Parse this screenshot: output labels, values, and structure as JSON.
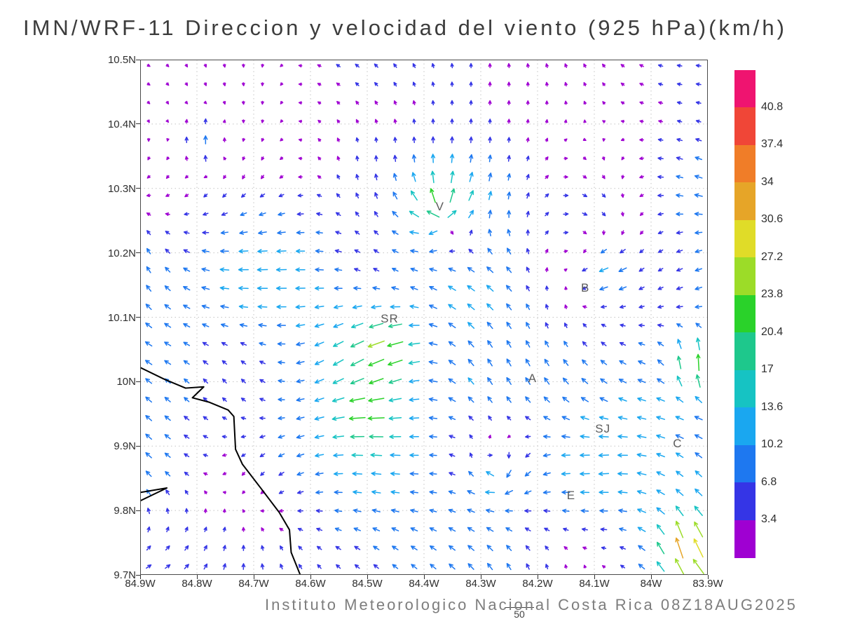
{
  "title": "IMN/WRF-11 Direccion y velocidad del viento (925 hPa)(km/h)",
  "footer": {
    "credit": "Instituto Meteorologico Nacional Costa Rica 08Z18AUG2025"
  },
  "reference_vector": {
    "label": "50"
  },
  "chart_data": {
    "type": "vector_field",
    "title": "IMN/WRF-11 Direccion y velocidad del viento (925 hPa)(km/h)",
    "model": "IMN/WRF-11",
    "level": "925 hPa",
    "units": "km/h",
    "valid_time": "08Z18AUG2025",
    "lon_range": [
      -84.9,
      -83.9
    ],
    "lat_range": [
      9.7,
      10.5
    ],
    "x_axis": {
      "ticks": [
        {
          "label": "84.9W",
          "value": -84.9
        },
        {
          "label": "84.8W",
          "value": -84.8
        },
        {
          "label": "84.7W",
          "value": -84.7
        },
        {
          "label": "84.6W",
          "value": -84.6
        },
        {
          "label": "84.5W",
          "value": -84.5
        },
        {
          "label": "84.4W",
          "value": -84.4
        },
        {
          "label": "84.3W",
          "value": -84.3
        },
        {
          "label": "84.2W",
          "value": -84.2
        },
        {
          "label": "84.1W",
          "value": -84.1
        },
        {
          "label": "84W",
          "value": -84.0
        },
        {
          "label": "83.9W",
          "value": -83.9
        }
      ]
    },
    "y_axis": {
      "ticks": [
        {
          "label": "10.5N",
          "value": 10.5
        },
        {
          "label": "10.4N",
          "value": 10.4
        },
        {
          "label": "10.3N",
          "value": 10.3
        },
        {
          "label": "10.2N",
          "value": 10.2
        },
        {
          "label": "10.1N",
          "value": 10.1
        },
        {
          "label": "10N",
          "value": 10.0
        },
        {
          "label": "9.9N",
          "value": 9.9
        },
        {
          "label": "9.8N",
          "value": 9.8
        },
        {
          "label": "9.7N",
          "value": 9.7
        }
      ]
    },
    "grid": {
      "nx": 30,
      "ny": 28,
      "lon0": -84.885,
      "dlon": 0.0334,
      "lat0": 9.713,
      "dlat": 0.0288
    },
    "colorbar": {
      "unit": "km/h",
      "levels": [
        3.4,
        6.8,
        10.2,
        13.6,
        17,
        20.4,
        23.8,
        27.2,
        30.6,
        34,
        37.4,
        40.8
      ],
      "colors": [
        "#9f00d2",
        "#3535e6",
        "#1e78f0",
        "#1aa7f0",
        "#16c3c3",
        "#1ec88c",
        "#2ad22a",
        "#9cdc28",
        "#e0dc28",
        "#e6a528",
        "#f07d28",
        "#f04637",
        "#ef1470"
      ]
    },
    "reference_vector": {
      "label": "50",
      "speed": 50
    },
    "stations": [
      {
        "label": "V",
        "lon": -84.372,
        "lat": 10.27
      },
      {
        "label": "B",
        "lon": -84.116,
        "lat": 10.144
      },
      {
        "label": "SR",
        "lon": -84.469,
        "lat": 10.096
      },
      {
        "label": "A",
        "lon": -84.209,
        "lat": 10.004
      },
      {
        "label": "SJ",
        "lon": -84.091,
        "lat": 9.925
      },
      {
        "label": "C",
        "lon": -83.954,
        "lat": 9.902
      },
      {
        "label": "E",
        "lon": -84.141,
        "lat": 9.822
      }
    ],
    "coastline": [
      [
        [
          -84.9,
          10.022
        ],
        [
          -84.858,
          10.004
        ],
        [
          -84.82,
          9.99
        ],
        [
          -84.788,
          9.992
        ],
        [
          -84.808,
          9.975
        ],
        [
          -84.778,
          9.968
        ],
        [
          -84.745,
          9.956
        ],
        [
          -84.735,
          9.946
        ],
        [
          -84.732,
          9.895
        ],
        [
          -84.72,
          9.872
        ],
        [
          -84.686,
          9.833
        ],
        [
          -84.655,
          9.797
        ],
        [
          -84.637,
          9.77
        ],
        [
          -84.634,
          9.735
        ],
        [
          -84.618,
          9.7
        ]
      ],
      [
        [
          -84.9,
          9.828
        ],
        [
          -84.853,
          9.835
        ],
        [
          -84.9,
          9.815
        ]
      ]
    ],
    "field_model": {
      "base": {
        "u": -7.5,
        "v": 1.0
      },
      "tx_span": [
        -84.9,
        -83.9
      ],
      "ty_span": [
        9.7,
        10.5
      ],
      "waves": [
        {
          "comp": "u",
          "amp": 4.5,
          "fx": 0.35,
          "fy": 1.1,
          "phase": 1.3
        },
        {
          "comp": "u",
          "amp": 3.5,
          "fx": 1.5,
          "fy": 0.25,
          "phase": 0.7
        },
        {
          "comp": "v",
          "amp": 4.0,
          "fx": 1.2,
          "fy": 0.3,
          "phase": 2.0
        },
        {
          "comp": "v",
          "amp": 3.0,
          "fx": 0.25,
          "fy": 0.9,
          "phase": 0.4
        }
      ],
      "noise": {
        "scale": 5.0,
        "amp_u": 8.0,
        "amp_v": 8.0,
        "seed": 7
      },
      "top_damping": {
        "lat_start": 10.27,
        "span": 0.13,
        "min_factor": 0.3
      },
      "features": [
        {
          "type": "source",
          "lon": -84.37,
          "lat": 10.26,
          "strength": 15,
          "radius": 0.075
        },
        {
          "type": "jet",
          "lon": -83.92,
          "lat": 10.03,
          "u": 8,
          "v": 24,
          "radius": 0.05
        },
        {
          "type": "jet",
          "lon": -83.94,
          "lat": 9.745,
          "u": 4,
          "v": 22,
          "radius": 0.045
        },
        {
          "type": "jet",
          "lon": -84.47,
          "lat": 10.06,
          "u": -13,
          "v": -2,
          "radius": 0.055
        },
        {
          "type": "jet",
          "lon": -84.5,
          "lat": 9.95,
          "u": -11,
          "v": 3,
          "radius": 0.05
        },
        {
          "type": "jet",
          "lon": -84.79,
          "lat": 10.37,
          "u": 0,
          "v": 12,
          "radius": 0.04
        },
        {
          "type": "jet",
          "lon": -84.08,
          "lat": 10.17,
          "u": -15,
          "v": -3,
          "radius": 0.055
        },
        {
          "type": "vortex",
          "lon": -84.28,
          "lat": 9.86,
          "strength": -9,
          "radius": 0.08
        }
      ],
      "arrow": {
        "len_base": 3,
        "len_per_speed": 0.85,
        "len_max": 30,
        "line_width": 1.5
      }
    }
  }
}
